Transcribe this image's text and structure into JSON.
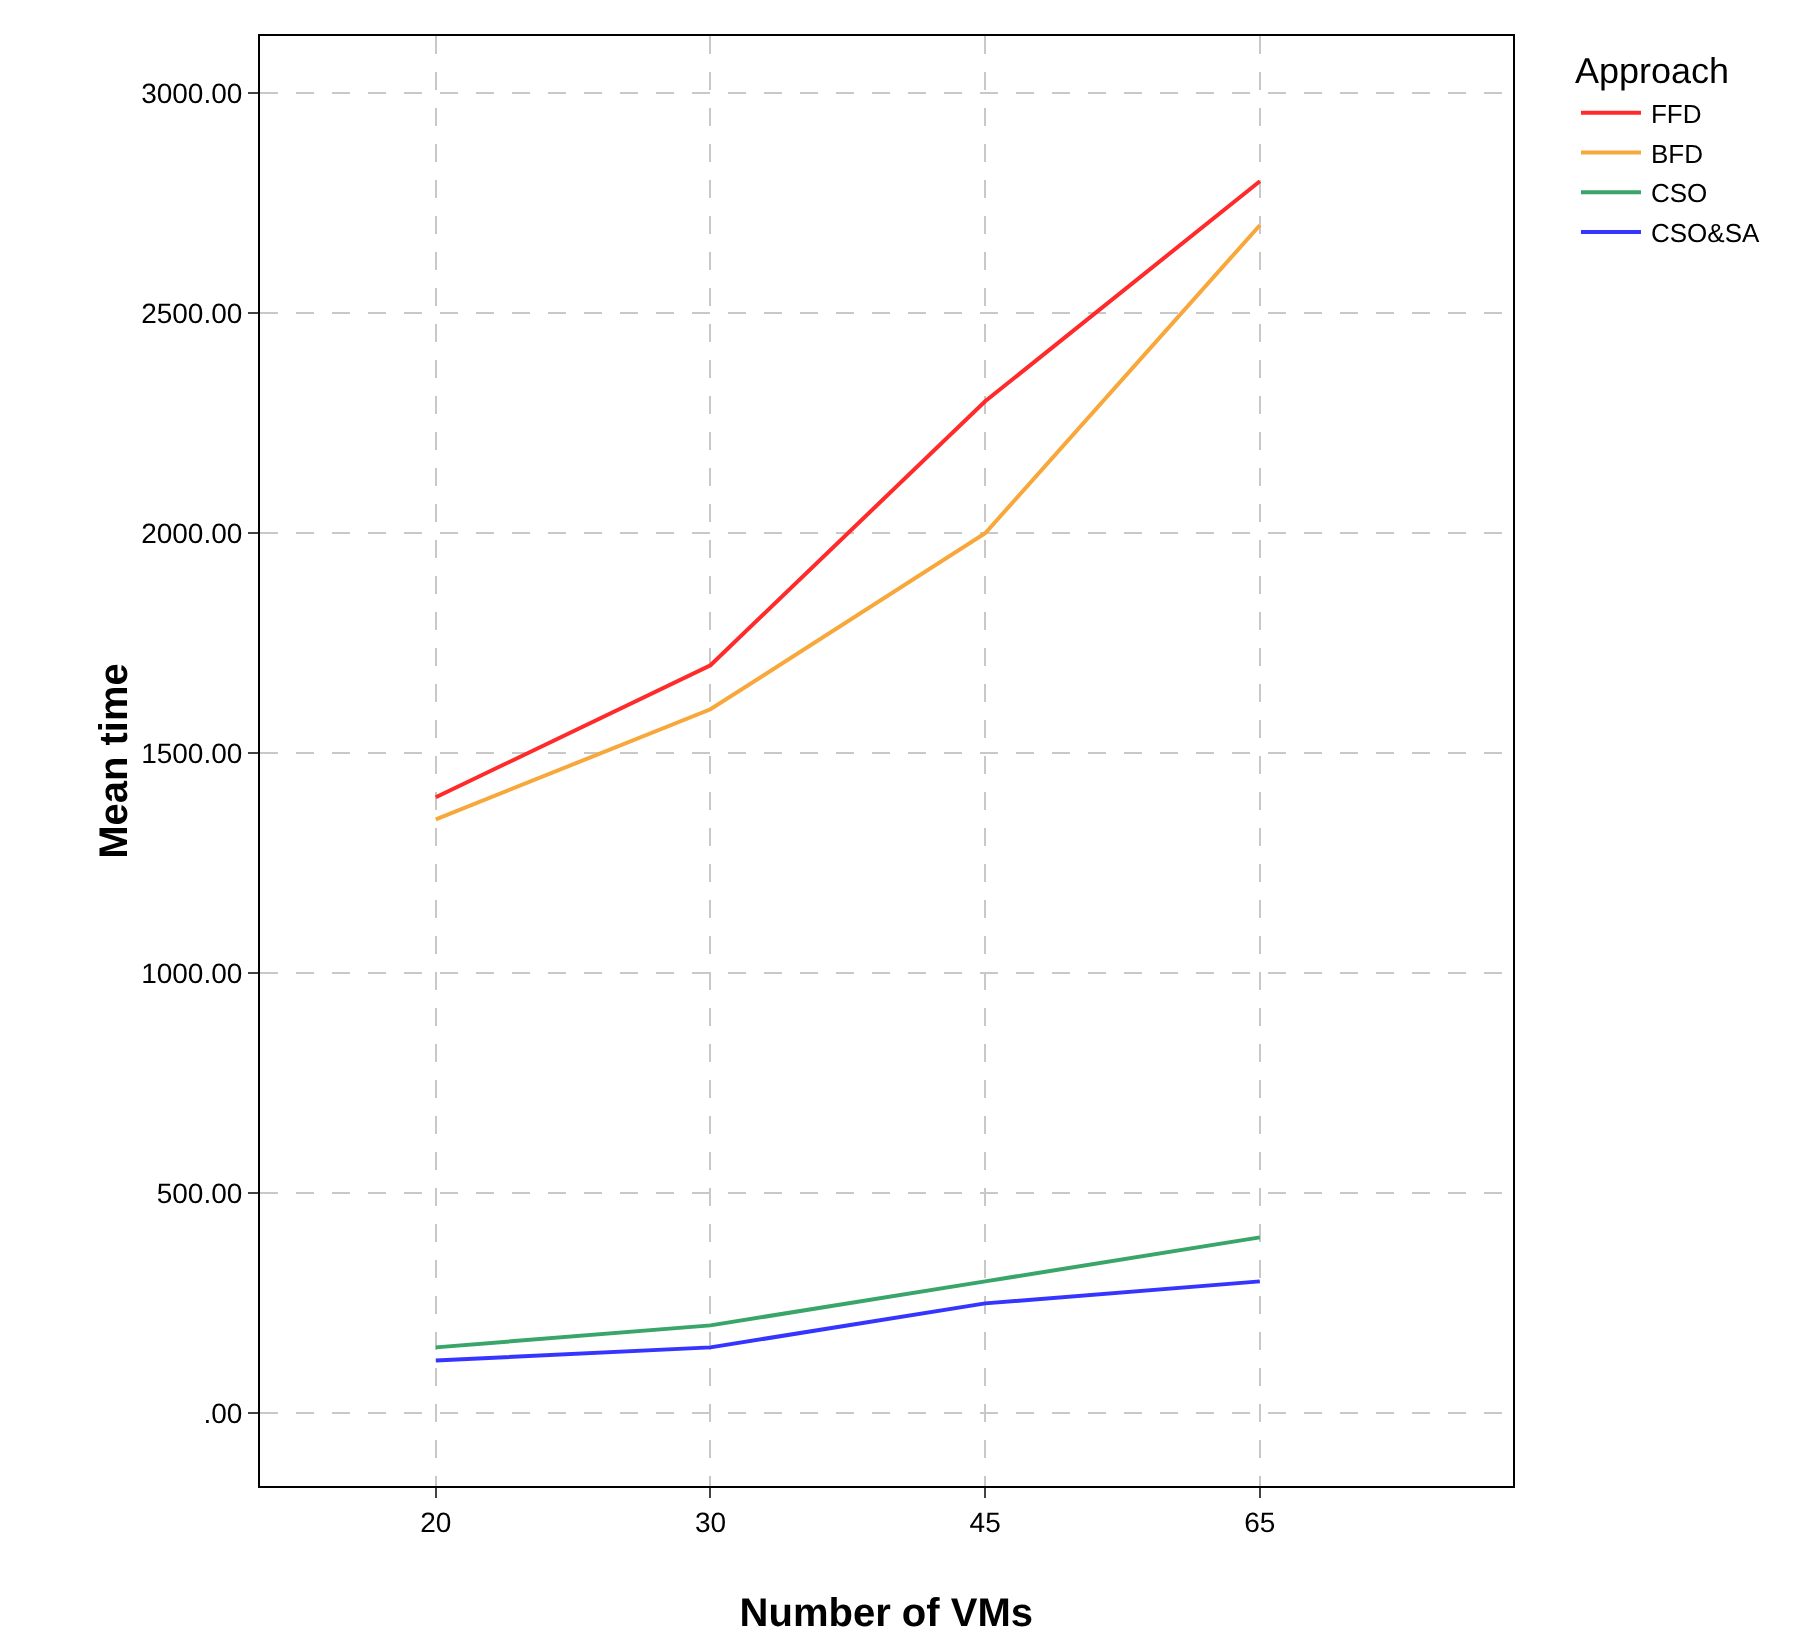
{
  "chart_data": {
    "type": "line",
    "xlabel": "Number of VMs",
    "ylabel": "Mean time",
    "legend_title": "Approach",
    "categories": [
      "20",
      "30",
      "45",
      "65"
    ],
    "series": [
      {
        "name": "FFD",
        "color": "#ff2a2a",
        "values": [
          1400,
          1700,
          2300,
          2800
        ]
      },
      {
        "name": "BFD",
        "color": "#f8a83a",
        "values": [
          1350,
          1600,
          2000,
          2700
        ]
      },
      {
        "name": "CSO",
        "color": "#3aa56a",
        "values": [
          150,
          200,
          300,
          400
        ]
      },
      {
        "name": "CSO&SA",
        "color": "#3535ff",
        "values": [
          120,
          150,
          250,
          300
        ]
      }
    ],
    "ylim": [
      -165,
      3130
    ],
    "yticks": [
      {
        "value": 0,
        "label": ".00"
      },
      {
        "value": 500,
        "label": "500.00"
      },
      {
        "value": 1000,
        "label": "1000.00"
      },
      {
        "value": 1500,
        "label": "1500.00"
      },
      {
        "value": 2000,
        "label": "2000.00"
      },
      {
        "value": 2500,
        "label": "2500.00"
      },
      {
        "value": 3000,
        "label": "3000.00"
      }
    ],
    "grid": true,
    "legend": "top right",
    "marker": "none",
    "line_style": "solid"
  }
}
